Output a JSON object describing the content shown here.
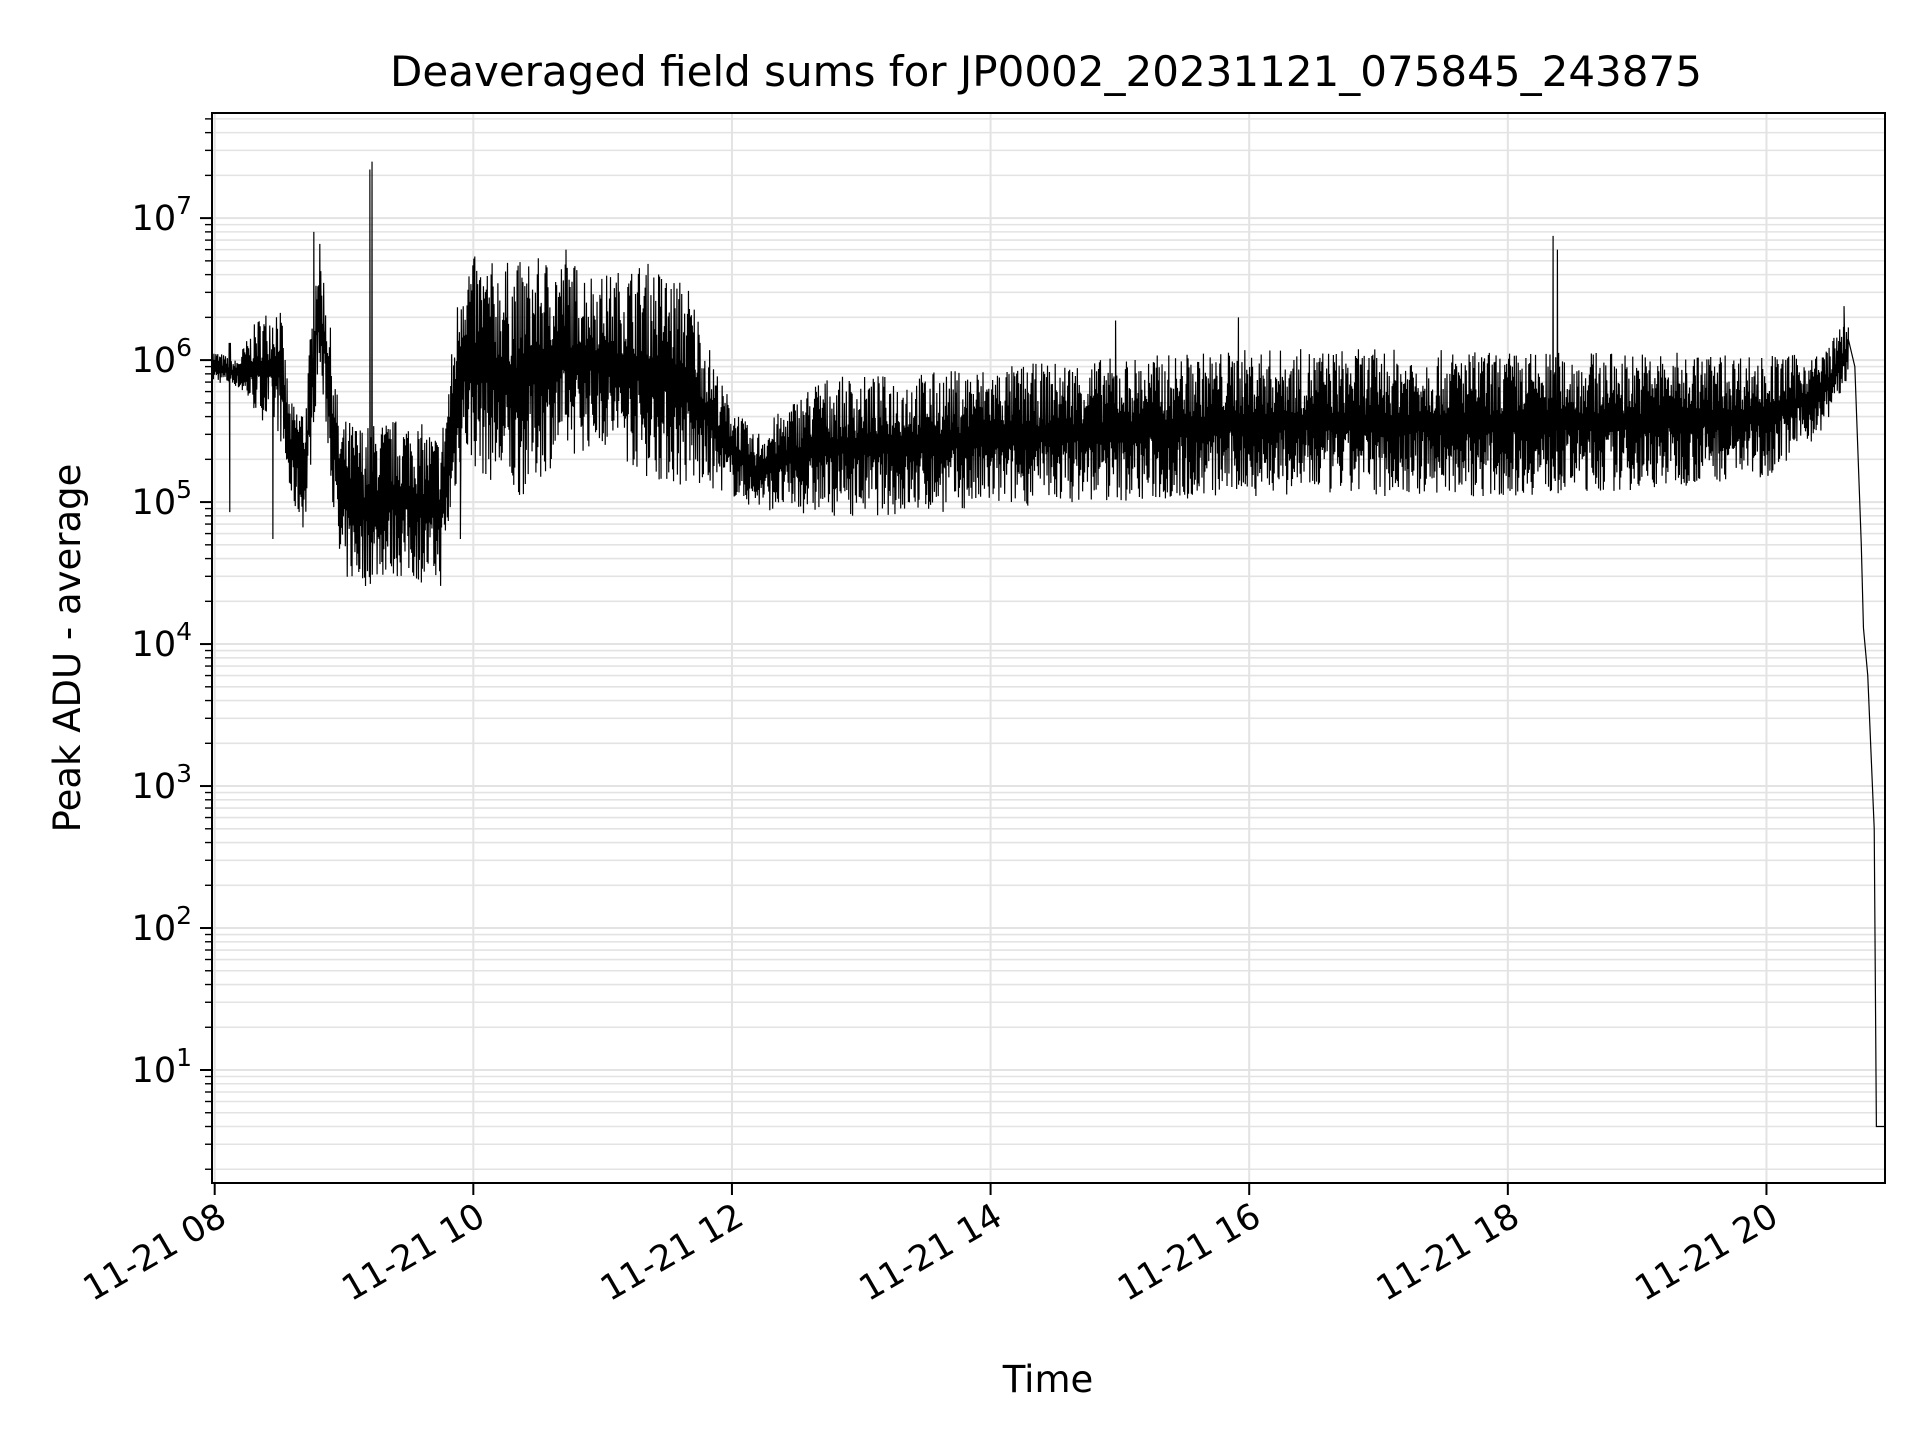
{
  "chart_data": {
    "type": "line",
    "title": "Deaveraged field sums for JP0002_20231121_075845_243875",
    "xlabel": "Time",
    "ylabel": "Peak ADU - average",
    "y_scale": "log",
    "ylim": [
      1.6,
      55000000
    ],
    "xlim": [
      "2023-11-21T07:58:45",
      "2023-11-21T20:55:00"
    ],
    "grid": true,
    "x_ticks": [
      {
        "at": "2023-11-21T08:00",
        "label": "11-21 08"
      },
      {
        "at": "2023-11-21T10:00",
        "label": "11-21 10"
      },
      {
        "at": "2023-11-21T12:00",
        "label": "11-21 12"
      },
      {
        "at": "2023-11-21T14:00",
        "label": "11-21 14"
      },
      {
        "at": "2023-11-21T16:00",
        "label": "11-21 16"
      },
      {
        "at": "2023-11-21T18:00",
        "label": "11-21 18"
      },
      {
        "at": "2023-11-21T20:00",
        "label": "11-21 20"
      }
    ],
    "y_ticks": [
      {
        "value": 10,
        "base": "10",
        "exp": "1"
      },
      {
        "value": 100,
        "base": "10",
        "exp": "2"
      },
      {
        "value": 1000,
        "base": "10",
        "exp": "3"
      },
      {
        "value": 10000,
        "base": "10",
        "exp": "4"
      },
      {
        "value": 100000,
        "base": "10",
        "exp": "5"
      },
      {
        "value": 1000000,
        "base": "10",
        "exp": "6"
      },
      {
        "value": 10000000,
        "base": "10",
        "exp": "7"
      }
    ],
    "series": [
      {
        "color": "#000000",
        "line_width": 1.2,
        "envelope": [
          {
            "t": "2023-11-21T07:58:45",
            "low": 700000,
            "high": 1200000
          },
          {
            "t": "2023-11-21T08:10",
            "low": 650000,
            "high": 1000000
          },
          {
            "t": "2023-11-21T08:20",
            "low": 400000,
            "high": 2000000
          },
          {
            "t": "2023-11-21T08:30",
            "low": 300000,
            "high": 2800000
          },
          {
            "t": "2023-11-21T08:35",
            "low": 100000,
            "high": 500000
          },
          {
            "t": "2023-11-21T08:42",
            "low": 60000,
            "high": 500000
          },
          {
            "t": "2023-11-21T08:48",
            "low": 800000,
            "high": 8000000
          },
          {
            "t": "2023-11-21T08:52",
            "low": 300000,
            "high": 3000000
          },
          {
            "t": "2023-11-21T08:58",
            "low": 28000,
            "high": 400000
          },
          {
            "t": "2023-11-21T09:10",
            "low": 25000,
            "high": 350000
          },
          {
            "t": "2023-11-21T09:20",
            "low": 30000,
            "high": 380000
          },
          {
            "t": "2023-11-21T09:30",
            "low": 28000,
            "high": 400000
          },
          {
            "t": "2023-11-21T09:45",
            "low": 25000,
            "high": 300000
          },
          {
            "t": "2023-11-21T09:50",
            "low": 80000,
            "high": 1200000
          },
          {
            "t": "2023-11-21T09:55",
            "low": 200000,
            "high": 6000000
          },
          {
            "t": "2023-11-21T10:05",
            "low": 150000,
            "high": 5000000
          },
          {
            "t": "2023-11-21T10:20",
            "low": 100000,
            "high": 5000000
          },
          {
            "t": "2023-11-21T10:40",
            "low": 200000,
            "high": 5500000
          },
          {
            "t": "2023-11-21T11:00",
            "low": 250000,
            "high": 4000000
          },
          {
            "t": "2023-11-21T11:20",
            "low": 150000,
            "high": 5000000
          },
          {
            "t": "2023-11-21T11:40",
            "low": 120000,
            "high": 3500000
          },
          {
            "t": "2023-11-21T11:55",
            "low": 120000,
            "high": 700000
          },
          {
            "t": "2023-11-21T12:10",
            "low": 90000,
            "high": 300000
          },
          {
            "t": "2023-11-21T12:40",
            "low": 80000,
            "high": 750000
          },
          {
            "t": "2023-11-21T13:20",
            "low": 80000,
            "high": 800000
          },
          {
            "t": "2023-11-21T14:00",
            "low": 90000,
            "high": 900000
          },
          {
            "t": "2023-11-21T14:40",
            "low": 100000,
            "high": 1000000
          },
          {
            "t": "2023-11-21T15:20",
            "low": 100000,
            "high": 1100000
          },
          {
            "t": "2023-11-21T16:00",
            "low": 110000,
            "high": 1200000
          },
          {
            "t": "2023-11-21T17:00",
            "low": 110000,
            "high": 1200000
          },
          {
            "t": "2023-11-21T18:00",
            "low": 110000,
            "high": 1150000
          },
          {
            "t": "2023-11-21T19:00",
            "low": 120000,
            "high": 1150000
          },
          {
            "t": "2023-11-21T20:00",
            "low": 150000,
            "high": 1100000
          },
          {
            "t": "2023-11-21T20:25",
            "low": 300000,
            "high": 1100000
          },
          {
            "t": "2023-11-21T20:38",
            "low": 700000,
            "high": 2000000
          }
        ],
        "spikes": [
          {
            "t": "2023-11-21T08:07",
            "value": 85000
          },
          {
            "t": "2023-11-21T08:27",
            "value": 55000
          },
          {
            "t": "2023-11-21T08:46",
            "value": 8000000
          },
          {
            "t": "2023-11-21T09:12",
            "value": 22000000
          },
          {
            "t": "2023-11-21T09:13",
            "value": 25000000
          },
          {
            "t": "2023-11-21T09:54",
            "value": 55000
          },
          {
            "t": "2023-11-21T10:43",
            "value": 6000000
          },
          {
            "t": "2023-11-21T14:58",
            "value": 1900000
          },
          {
            "t": "2023-11-21T15:55",
            "value": 2000000
          },
          {
            "t": "2023-11-21T18:21",
            "value": 7500000
          },
          {
            "t": "2023-11-21T18:23",
            "value": 6000000
          },
          {
            "t": "2023-11-21T20:36",
            "value": 2400000
          }
        ],
        "tail": [
          {
            "t": "2023-11-21T20:38",
            "value": 1400000
          },
          {
            "t": "2023-11-21T20:41",
            "value": 900000
          },
          {
            "t": "2023-11-21T20:44",
            "value": 50000
          },
          {
            "t": "2023-11-21T20:45",
            "value": 13000
          },
          {
            "t": "2023-11-21T20:47",
            "value": 6000
          },
          {
            "t": "2023-11-21T20:50",
            "value": 500
          },
          {
            "t": "2023-11-21T20:51",
            "value": 4
          },
          {
            "t": "2023-11-21T20:55",
            "value": 4
          }
        ]
      }
    ]
  }
}
